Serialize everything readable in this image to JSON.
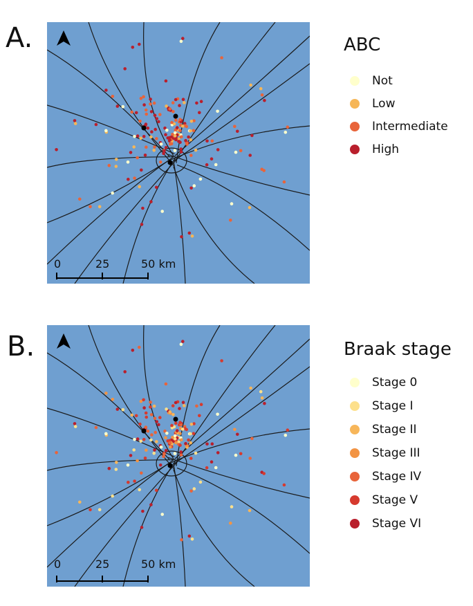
{
  "panels": [
    {
      "letter": "A.",
      "legend_title": "ABC",
      "legend_items": [
        {
          "label": "Not",
          "color": "#ffffcc"
        },
        {
          "label": "Low",
          "color": "#f6b657"
        },
        {
          "label": "Intermediate",
          "color": "#e8643a"
        },
        {
          "label": "High",
          "color": "#b91f2c"
        }
      ],
      "scale": {
        "labels": [
          "0",
          "25",
          "50 km"
        ]
      },
      "north_arrow": "north-arrow-icon"
    },
    {
      "letter": "B.",
      "legend_title": "Braak stage",
      "legend_items": [
        {
          "label": "Stage 0",
          "color": "#ffffcc"
        },
        {
          "label": "Stage I",
          "color": "#fde08c"
        },
        {
          "label": "Stage II",
          "color": "#f7b65a"
        },
        {
          "label": "Stage III",
          "color": "#f29444"
        },
        {
          "label": "Stage IV",
          "color": "#e8643a"
        },
        {
          "label": "Stage V",
          "color": "#d63a2e"
        },
        {
          "label": "Stage VI",
          "color": "#b91f2c"
        }
      ],
      "scale": {
        "labels": [
          "0",
          "25",
          "50 km"
        ]
      },
      "north_arrow": "north-arrow-icon"
    }
  ],
  "map_colors": {
    "water": "#6f9fd0",
    "roads": "#1a1a1a",
    "city": "#000000"
  }
}
